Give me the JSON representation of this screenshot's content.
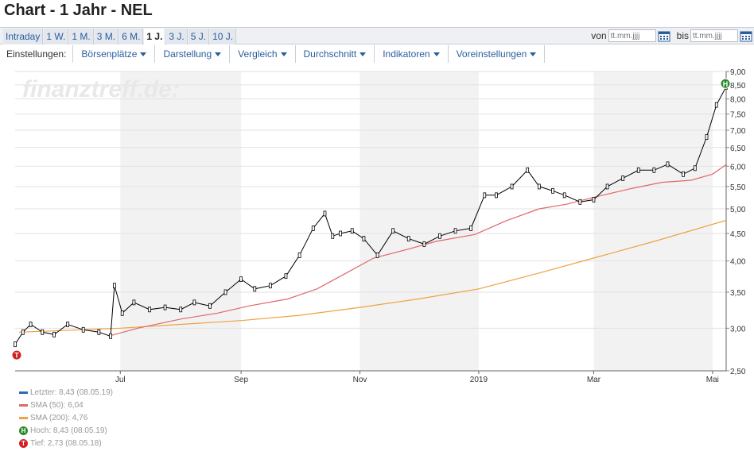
{
  "title": "Chart - 1 Jahr - NEL",
  "tabs": [
    "Intraday",
    "1 W.",
    "1 M.",
    "3 M.",
    "6 M.",
    "1 J.",
    "3 J.",
    "5 J.",
    "10 J."
  ],
  "active_tab": 5,
  "range": {
    "from_label": "von",
    "to_label": "bis",
    "from_placeholder": "tt.mm.jjjj",
    "to_placeholder": "tt.mm.jjjj"
  },
  "settings_label": "Einstellungen:",
  "menus": [
    "Börsenplätze",
    "Darstellung",
    "Vergleich",
    "Durchschnitt",
    "Indikatoren",
    "Voreinstellungen"
  ],
  "watermark": "finanztreff.de:",
  "colors": {
    "accent": "#2a5d9c",
    "sma50": "#e06868",
    "sma200": "#f0a040",
    "candle": "#000000",
    "high": "#2a8a2a",
    "low": "#d42020",
    "band": "#f2f2f2"
  },
  "legend": [
    {
      "text": "Letzter: 8,43 (08.05.19)",
      "kind": "line",
      "color": "#2a6db0"
    },
    {
      "text": "SMA (50): 6,04",
      "kind": "line",
      "color": "#e06868"
    },
    {
      "text": "SMA (200): 4,76",
      "kind": "line",
      "color": "#f0a040"
    },
    {
      "text": "Hoch: 8,43 (08.05.19)",
      "kind": "H",
      "color": "#2a8a2a"
    },
    {
      "text": "Tief: 2,73 (08.05.18)",
      "kind": "T",
      "color": "#d42020"
    }
  ],
  "chart_data": {
    "type": "line",
    "y_scale": "log",
    "ylim": [
      2.5,
      9.0
    ],
    "yticks": [
      2.5,
      3.0,
      3.5,
      4.0,
      4.5,
      5.0,
      5.5,
      6.0,
      6.5,
      7.0,
      7.5,
      8.0,
      8.5,
      9.0
    ],
    "ytick_labels": [
      "2,50",
      "3,00",
      "3,50",
      "4,00",
      "4,50",
      "5,00",
      "5,50",
      "6,00",
      "6,50",
      "7,00",
      "7,50",
      "8,00",
      "8,50",
      "9,00"
    ],
    "xlim": [
      "2018-05-08",
      "2019-05-08"
    ],
    "x_ticks": [
      {
        "date": "2018-07-01",
        "label": "Jul"
      },
      {
        "date": "2018-09-01",
        "label": "Sep"
      },
      {
        "date": "2018-11-01",
        "label": "Nov"
      },
      {
        "date": "2019-01-01",
        "label": "2019"
      },
      {
        "date": "2019-03-01",
        "label": "Mar"
      },
      {
        "date": "2019-05-01",
        "label": "Mai"
      }
    ],
    "shaded_bands": [
      [
        "2018-07-01",
        "2018-09-01"
      ],
      [
        "2018-11-01",
        "2019-01-01"
      ],
      [
        "2019-03-01",
        "2019-05-01"
      ]
    ],
    "grid": true,
    "series": [
      {
        "name": "Letzter",
        "x": [
          "2018-05-08",
          "2018-05-12",
          "2018-05-16",
          "2018-05-22",
          "2018-05-28",
          "2018-06-04",
          "2018-06-12",
          "2018-06-20",
          "2018-06-26",
          "2018-06-28",
          "2018-07-02",
          "2018-07-08",
          "2018-07-16",
          "2018-07-24",
          "2018-08-01",
          "2018-08-08",
          "2018-08-16",
          "2018-08-24",
          "2018-09-01",
          "2018-09-08",
          "2018-09-16",
          "2018-09-24",
          "2018-10-01",
          "2018-10-08",
          "2018-10-14",
          "2018-10-18",
          "2018-10-22",
          "2018-10-28",
          "2018-11-03",
          "2018-11-10",
          "2018-11-18",
          "2018-11-26",
          "2018-12-04",
          "2018-12-12",
          "2018-12-20",
          "2018-12-28",
          "2019-01-04",
          "2019-01-10",
          "2019-01-18",
          "2019-01-26",
          "2019-02-01",
          "2019-02-08",
          "2019-02-14",
          "2019-02-22",
          "2019-03-01",
          "2019-03-08",
          "2019-03-16",
          "2019-03-24",
          "2019-04-01",
          "2019-04-08",
          "2019-04-16",
          "2019-04-22",
          "2019-04-28",
          "2019-05-03",
          "2019-05-08"
        ],
        "y": [
          2.8,
          2.95,
          3.05,
          2.95,
          2.92,
          3.05,
          2.98,
          2.95,
          2.9,
          3.6,
          3.2,
          3.35,
          3.25,
          3.28,
          3.25,
          3.35,
          3.3,
          3.5,
          3.7,
          3.55,
          3.6,
          3.75,
          4.1,
          4.6,
          4.9,
          4.45,
          4.5,
          4.55,
          4.4,
          4.1,
          4.55,
          4.4,
          4.3,
          4.45,
          4.55,
          4.6,
          5.3,
          5.3,
          5.5,
          5.9,
          5.5,
          5.4,
          5.3,
          5.15,
          5.2,
          5.5,
          5.7,
          5.9,
          5.9,
          6.05,
          5.8,
          5.95,
          6.8,
          7.8,
          8.43
        ]
      },
      {
        "name": "SMA (50)",
        "x": [
          "2018-06-25",
          "2018-07-10",
          "2018-08-01",
          "2018-08-20",
          "2018-09-05",
          "2018-09-25",
          "2018-10-10",
          "2018-10-25",
          "2018-11-08",
          "2018-11-25",
          "2018-12-10",
          "2018-12-30",
          "2019-01-15",
          "2019-02-01",
          "2019-02-15",
          "2019-03-01",
          "2019-03-20",
          "2019-04-05",
          "2019-04-20",
          "2019-05-01",
          "2019-05-08"
        ],
        "y": [
          2.9,
          3.0,
          3.12,
          3.2,
          3.3,
          3.4,
          3.55,
          3.8,
          4.05,
          4.2,
          4.35,
          4.48,
          4.75,
          5.0,
          5.1,
          5.25,
          5.45,
          5.6,
          5.65,
          5.8,
          6.04
        ]
      },
      {
        "name": "SMA (200)",
        "x": [
          "2018-05-10",
          "2018-06-01",
          "2018-07-01",
          "2018-08-01",
          "2018-09-01",
          "2018-10-01",
          "2018-11-01",
          "2018-12-01",
          "2019-01-01",
          "2019-02-01",
          "2019-03-01",
          "2019-04-01",
          "2019-05-08"
        ],
        "y": [
          2.95,
          2.97,
          3.0,
          3.05,
          3.1,
          3.17,
          3.28,
          3.4,
          3.55,
          3.8,
          4.05,
          4.35,
          4.76
        ]
      }
    ],
    "markers": [
      {
        "label": "H",
        "date": "2019-05-08",
        "value": 8.43
      },
      {
        "label": "T",
        "date": "2018-05-08",
        "value": 2.73
      }
    ]
  }
}
